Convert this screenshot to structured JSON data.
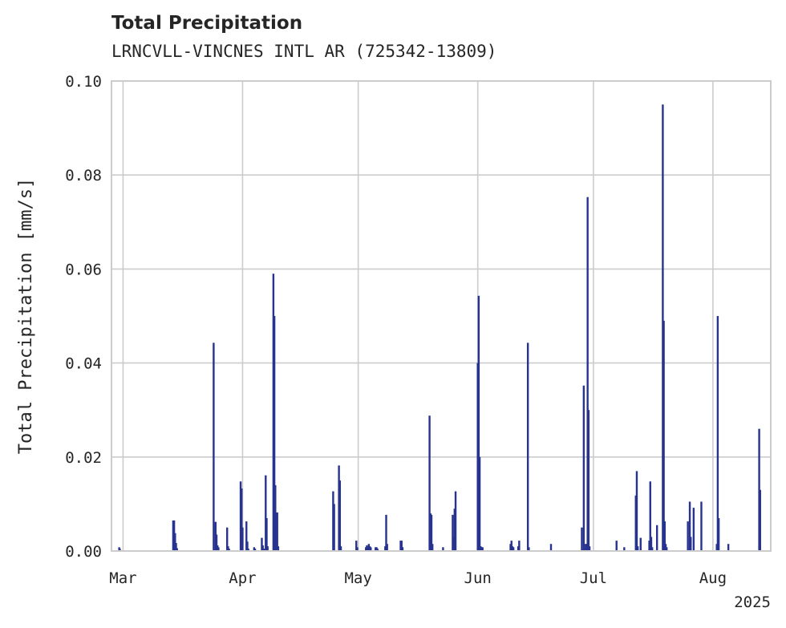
{
  "chart_data": {
    "type": "bar",
    "title": "Total Precipitation",
    "subtitle": "LRNCVLL-VINCNES INTL AR (725342-13809)",
    "xlabel": "",
    "ylabel": "Total Precipitation [mm/s]",
    "xlim": [
      "2025-02-26",
      "2025-08-16"
    ],
    "ylim": [
      0,
      0.1
    ],
    "yticks": [
      0.0,
      0.02,
      0.04,
      0.06,
      0.08,
      0.1
    ],
    "ytick_labels": [
      "0.00",
      "0.02",
      "0.04",
      "0.06",
      "0.08",
      "0.10"
    ],
    "xticks": [
      "2025-03-01",
      "2025-04-01",
      "2025-05-01",
      "2025-06-01",
      "2025-07-01",
      "2025-08-01"
    ],
    "xtick_labels": [
      "Mar",
      "Apr",
      "May",
      "Jun",
      "Jul",
      "Aug"
    ],
    "year_label": "2025",
    "grid": true,
    "legend": "none",
    "bar_color": "#27338f",
    "grid_color": "#cccccc",
    "spine_color": "#cccccc",
    "x": [
      "2025-02-28T00:00",
      "2025-02-28T04:00",
      "2025-03-14T00:00",
      "2025-03-14T06:00",
      "2025-03-14T12:00",
      "2025-03-14T18:00",
      "2025-03-15T00:00",
      "2025-03-24T12:00",
      "2025-03-25T00:00",
      "2025-03-25T06:00",
      "2025-03-25T12:00",
      "2025-03-25T18:00",
      "2025-03-28T00:00",
      "2025-03-28T06:00",
      "2025-03-28T12:00",
      "2025-03-31T12:00",
      "2025-03-31T18:00",
      "2025-04-01T00:00",
      "2025-04-02T00:00",
      "2025-04-02T06:00",
      "2025-04-02T12:00",
      "2025-04-04T00:00",
      "2025-04-04T06:00",
      "2025-04-06T00:00",
      "2025-04-06T06:00",
      "2025-04-06T12:00",
      "2025-04-07T00:00",
      "2025-04-07T06:00",
      "2025-04-07T12:00",
      "2025-04-09T00:00",
      "2025-04-09T06:00",
      "2025-04-09T12:00",
      "2025-04-09T18:00",
      "2025-04-10T00:00",
      "2025-04-10T06:00",
      "2025-04-24T12:00",
      "2025-04-24T18:00",
      "2025-04-26T00:00",
      "2025-04-26T06:00",
      "2025-04-26T12:00",
      "2025-04-30T12:00",
      "2025-04-30T18:00",
      "2025-05-03T00:00",
      "2025-05-03T06:00",
      "2025-05-03T12:00",
      "2025-05-03T18:00",
      "2025-05-04T00:00",
      "2025-05-04T06:00",
      "2025-05-05T12:00",
      "2025-05-05T18:00",
      "2025-05-06T00:00",
      "2025-05-08T00:00",
      "2025-05-08T06:00",
      "2025-05-08T12:00",
      "2025-05-12T00:00",
      "2025-05-12T06:00",
      "2025-05-12T12:00",
      "2025-05-19T12:00",
      "2025-05-19T18:00",
      "2025-05-20T00:00",
      "2025-05-20T06:00",
      "2025-05-23T00:00",
      "2025-05-25T12:00",
      "2025-05-25T18:00",
      "2025-05-26T00:00",
      "2025-05-26T06:00",
      "2025-06-01T00:00",
      "2025-06-01T06:00",
      "2025-06-01T12:00",
      "2025-06-01T18:00",
      "2025-06-02T00:00",
      "2025-06-02T06:00",
      "2025-06-09T12:00",
      "2025-06-09T18:00",
      "2025-06-10T00:00",
      "2025-06-10T06:00",
      "2025-06-11T12:00",
      "2025-06-11T18:00",
      "2025-06-14T00:00",
      "2025-06-14T06:00",
      "2025-06-20T00:00",
      "2025-06-28T00:00",
      "2025-06-28T12:00",
      "2025-06-29T00:00",
      "2025-06-29T06:00",
      "2025-06-29T12:00",
      "2025-06-29T18:00",
      "2025-06-30T00:00",
      "2025-07-07T00:00",
      "2025-07-09T00:00",
      "2025-07-12T00:00",
      "2025-07-12T06:00",
      "2025-07-12T12:00",
      "2025-07-13T06:00",
      "2025-07-15T12:00",
      "2025-07-15T18:00",
      "2025-07-16T00:00",
      "2025-07-16T06:00",
      "2025-07-17T12:00",
      "2025-07-19T00:00",
      "2025-07-19T06:00",
      "2025-07-19T12:00",
      "2025-07-19T18:00",
      "2025-07-20T00:00",
      "2025-07-25T12:00",
      "2025-07-26T00:00",
      "2025-07-26T06:00",
      "2025-07-27T00:00",
      "2025-07-29T00:00",
      "2025-08-02T00:00",
      "2025-08-02T06:00",
      "2025-08-02T12:00",
      "2025-08-05T00:00",
      "2025-08-13T00:00",
      "2025-08-13T06:00"
    ],
    "values": [
      0.0008,
      0.0005,
      0.0065,
      0.0065,
      0.0038,
      0.0017,
      0.0006,
      0.0443,
      0.0062,
      0.0035,
      0.0012,
      0.0008,
      0.005,
      0.001,
      0.0005,
      0.0148,
      0.0133,
      0.005,
      0.0063,
      0.002,
      0.0005,
      0.0008,
      0.0005,
      0.0028,
      0.0012,
      0.0005,
      0.0161,
      0.007,
      0.001,
      0.059,
      0.05,
      0.014,
      0.005,
      0.0082,
      0.001,
      0.0127,
      0.01,
      0.0182,
      0.015,
      0.001,
      0.0022,
      0.0008,
      0.0008,
      0.0012,
      0.0008,
      0.0015,
      0.001,
      0.0008,
      0.0008,
      0.0008,
      0.0005,
      0.001,
      0.0077,
      0.0015,
      0.0022,
      0.0022,
      0.0008,
      0.0288,
      0.008,
      0.0077,
      0.0015,
      0.0008,
      0.0077,
      0.003,
      0.009,
      0.0127,
      0.04,
      0.0543,
      0.02,
      0.001,
      0.0008,
      0.0008,
      0.0015,
      0.0022,
      0.001,
      0.0008,
      0.001,
      0.0022,
      0.0443,
      0.0008,
      0.0015,
      0.005,
      0.0352,
      0.0015,
      0.0015,
      0.0753,
      0.03,
      0.001,
      0.0022,
      0.0008,
      0.0118,
      0.017,
      0.001,
      0.0028,
      0.0022,
      0.0148,
      0.003,
      0.0008,
      0.0055,
      0.095,
      0.049,
      0.0063,
      0.0015,
      0.0008,
      0.0063,
      0.0105,
      0.003,
      0.0092,
      0.0105,
      0.0015,
      0.05,
      0.007,
      0.0015,
      0.026,
      0.013
    ]
  }
}
